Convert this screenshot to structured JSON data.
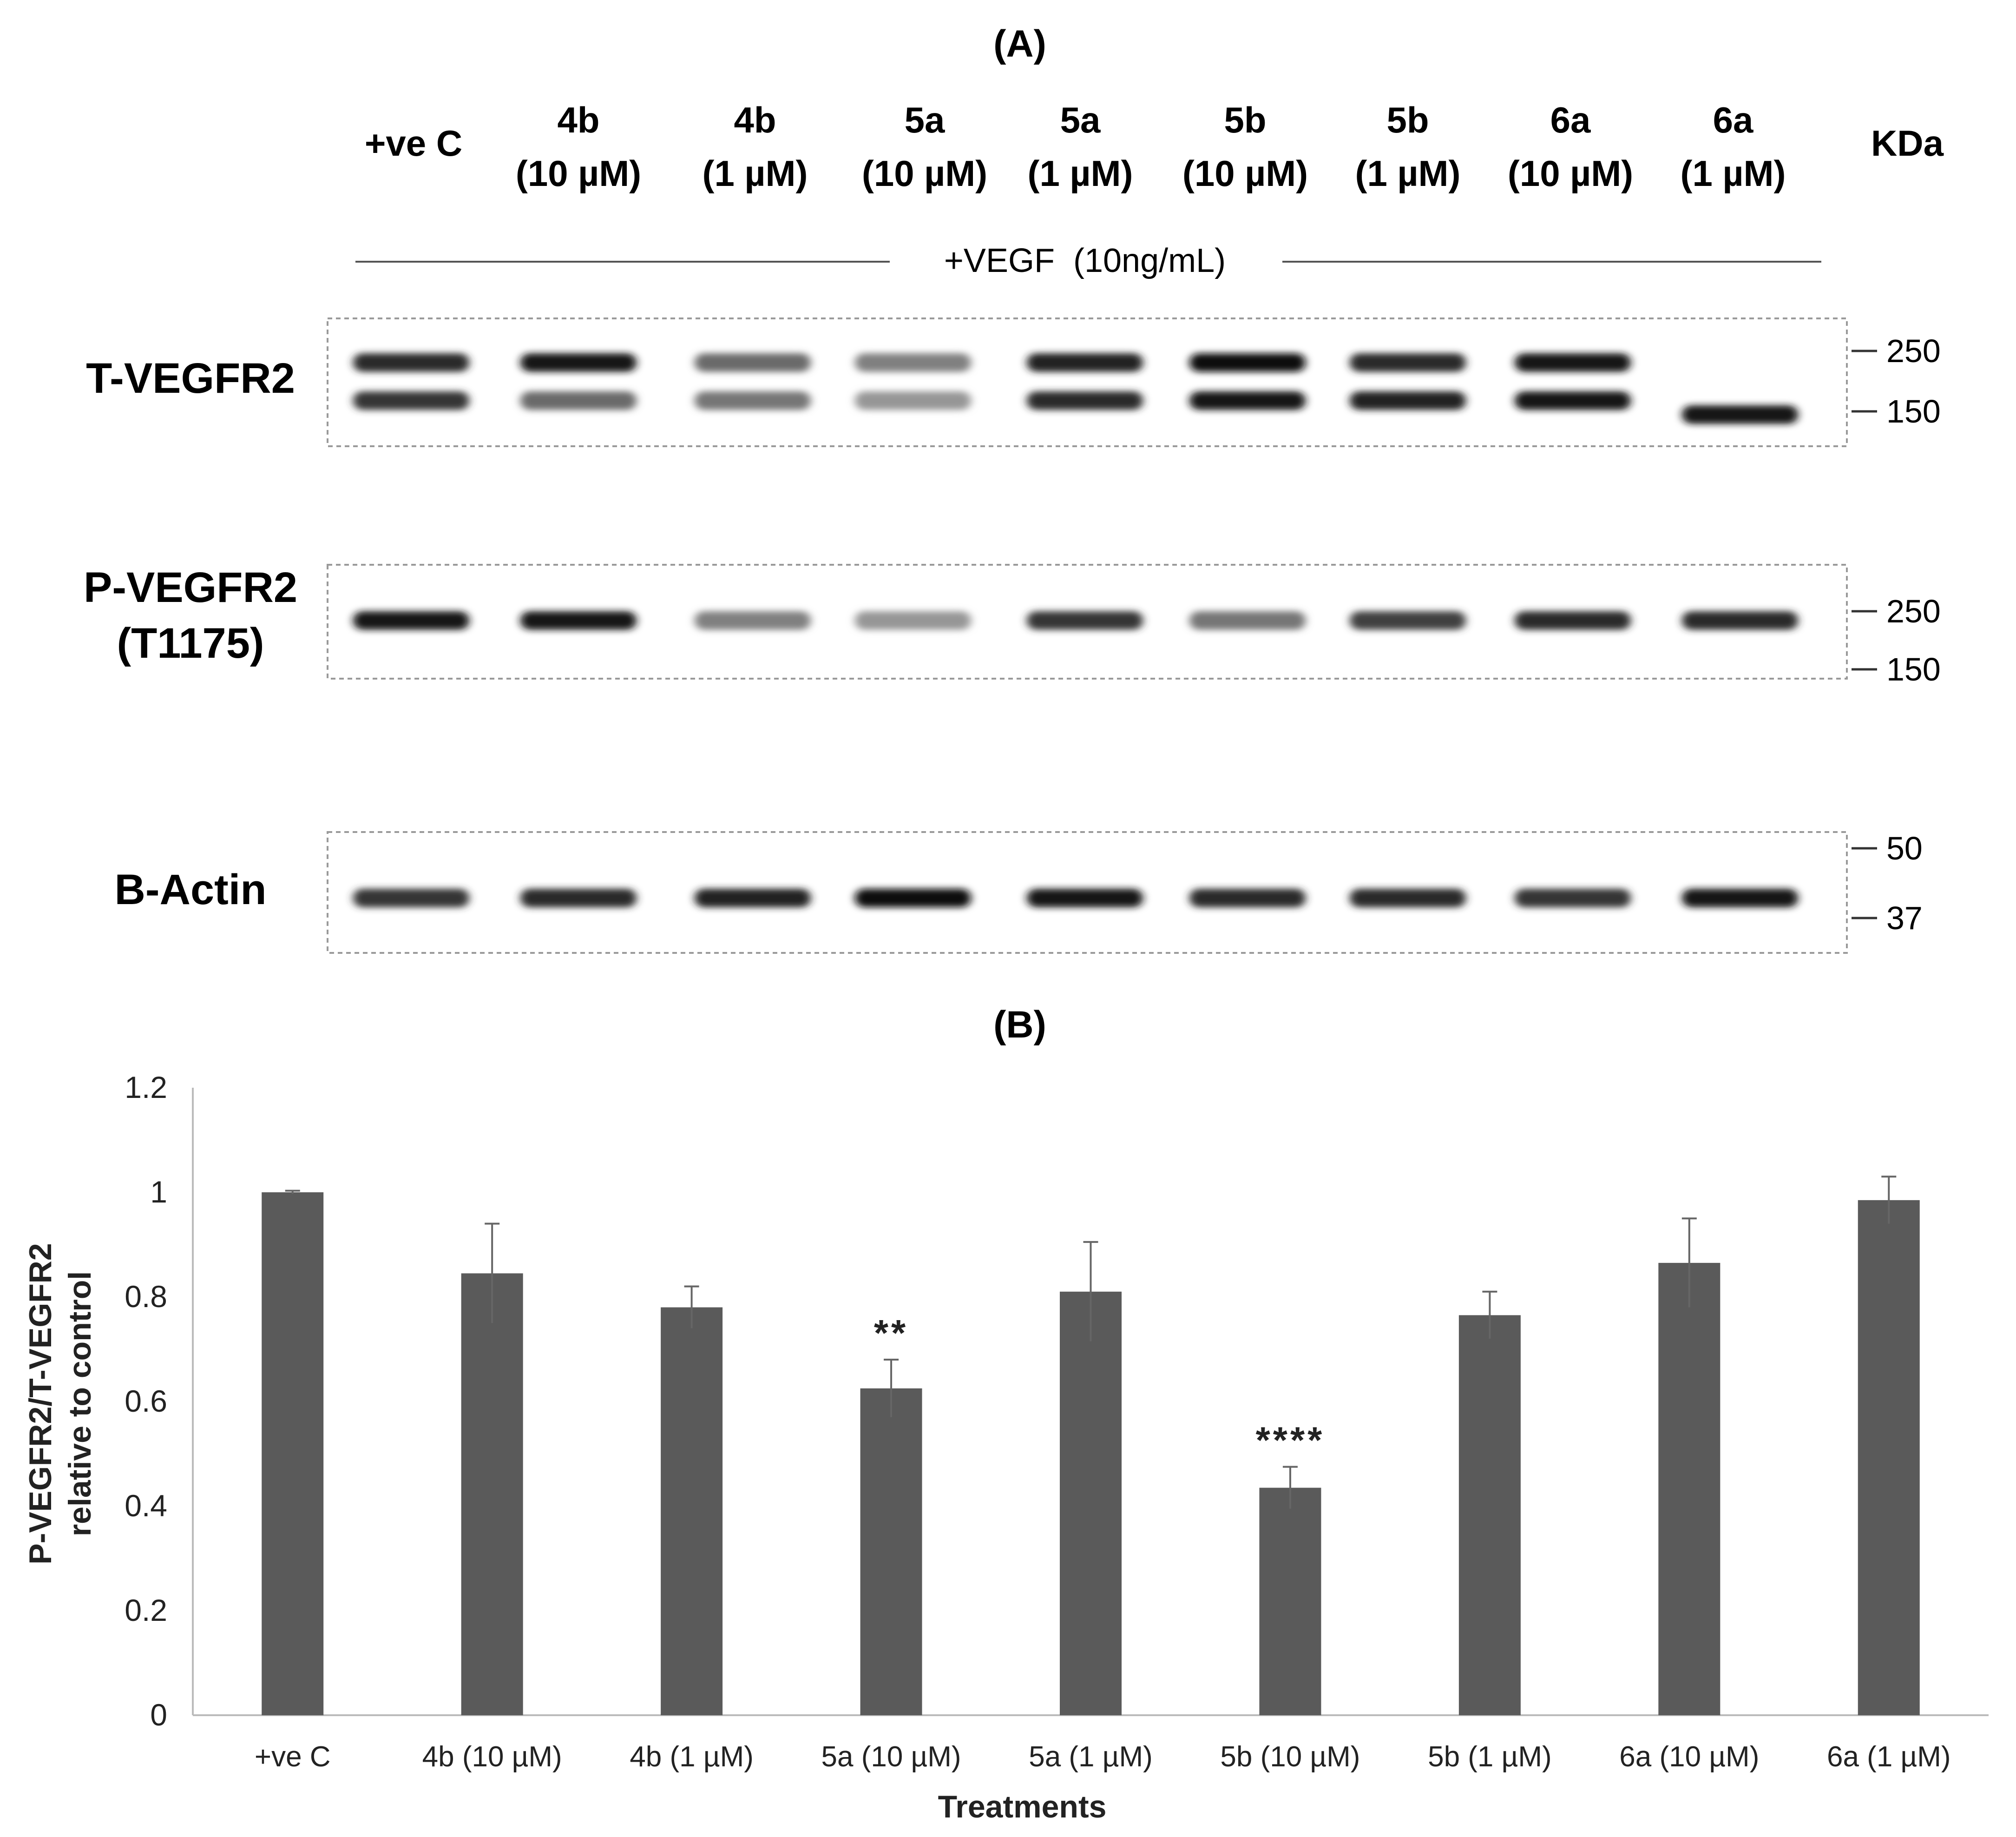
{
  "panel_a_label": "(A)",
  "panel_b_label": "(B)",
  "lanes": [
    {
      "name": "+ve C",
      "conc": ""
    },
    {
      "name": "4b",
      "conc": "(10 µM)"
    },
    {
      "name": "4b",
      "conc": "(1 µM)"
    },
    {
      "name": "5a",
      "conc": "(10 µM)"
    },
    {
      "name": "5a",
      "conc": "(1 µM)"
    },
    {
      "name": "5b",
      "conc": "(10 µM)"
    },
    {
      "name": "5b",
      "conc": "(1 µM)"
    },
    {
      "name": "6a",
      "conc": "(10 µM)"
    },
    {
      "name": "6a",
      "conc": "(1 µM)"
    }
  ],
  "kda_label": "KDa",
  "treatment_label": "+VEGF  (10ng/mL)",
  "blots": [
    {
      "label": [
        "T-VEGFR2"
      ],
      "markers": [
        "250",
        "150"
      ],
      "upper_band_intensity": [
        0.85,
        0.95,
        0.55,
        0.45,
        0.9,
        1.0,
        0.85,
        0.95,
        0.0
      ],
      "lower_band_intensity": [
        0.8,
        0.55,
        0.5,
        0.35,
        0.85,
        0.95,
        0.9,
        0.95,
        0.95
      ]
    },
    {
      "label": [
        "P-VEGFR2",
        "(T1175)"
      ],
      "markers": [
        "250",
        "150"
      ],
      "band_intensity": [
        0.95,
        0.95,
        0.45,
        0.35,
        0.8,
        0.5,
        0.75,
        0.85,
        0.85
      ]
    },
    {
      "label": [
        "B-Actin"
      ],
      "markers": [
        "50",
        "37"
      ],
      "band_intensity": [
        0.8,
        0.85,
        0.9,
        1.0,
        0.95,
        0.85,
        0.85,
        0.8,
        0.95
      ]
    }
  ],
  "chart_data": {
    "type": "bar",
    "title": "",
    "xlabel": "Treatments",
    "ylabel": [
      "P-VEGFR2/T-VEGFR2",
      "relative to control"
    ],
    "ylim": [
      0,
      1.2
    ],
    "yticks": [
      "0",
      "0.2",
      "0.4",
      "0.6",
      "0.8",
      "1",
      "1.2"
    ],
    "categories": [
      "+ve C",
      "4b (10 µM)",
      "4b (1 µM)",
      "5a (10 µM)",
      "5a (1 µM)",
      "5b (10 µM)",
      "5b (1 µM)",
      "6a (10 µM)",
      "6a (1 µM)"
    ],
    "values": [
      1.0,
      0.845,
      0.78,
      0.625,
      0.81,
      0.435,
      0.765,
      0.865,
      0.985
    ],
    "errors": [
      0.003,
      0.095,
      0.04,
      0.055,
      0.095,
      0.04,
      0.045,
      0.085,
      0.045
    ],
    "annotations": [
      "",
      "",
      "",
      "**",
      "",
      "****",
      "",
      "",
      ""
    ],
    "bar_color": "#5a5a5a"
  }
}
